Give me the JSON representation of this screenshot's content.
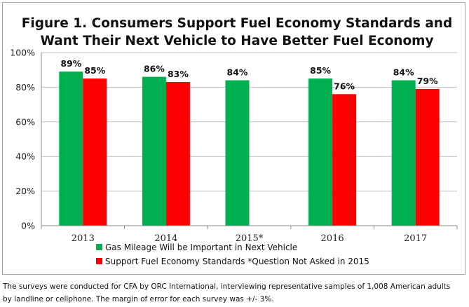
{
  "chart_data": {
    "type": "bar",
    "title": [
      "Figure 1. Consumers Support Fuel Economy Standards and",
      "Want Their Next Vehicle to Have Better Fuel Economy"
    ],
    "categories": [
      "2013",
      "2014",
      "2015*",
      "2016",
      "2017"
    ],
    "series": [
      {
        "name": "Gas Mileage Will be Important in Next Vehicle",
        "color": "#00b050",
        "values": [
          89,
          86,
          84,
          85,
          84
        ],
        "labels": [
          "89%",
          "86%",
          "84%",
          "85%",
          "84%"
        ]
      },
      {
        "name": "Support Fuel Economy Standards *Question Not Asked in 2015",
        "color": "#ff0000",
        "values": [
          85,
          83,
          null,
          76,
          79
        ],
        "labels": [
          "85%",
          "83%",
          "",
          "76%",
          "79%"
        ]
      }
    ],
    "ylim": [
      0,
      100
    ],
    "yticks": [
      0,
      20,
      40,
      60,
      80,
      100
    ],
    "ytick_labels": [
      "0%",
      "20%",
      "40%",
      "60%",
      "80%",
      "100%"
    ],
    "grid": true,
    "legend_position": "bottom"
  },
  "caption": {
    "line1": "The surveys were conducted for CFA by ORC International, interviewing representative samples of 1,008 American adults",
    "line2": "by landline or cellphone.  The margin of error for each survey was +/- 3%."
  }
}
